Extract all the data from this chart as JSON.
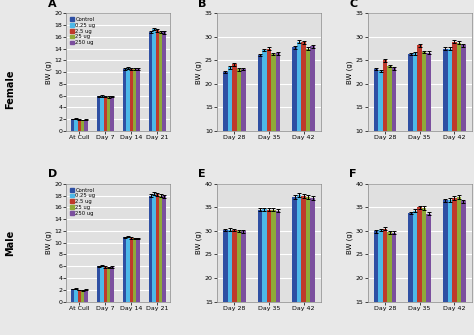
{
  "colors": [
    "#2e4fa3",
    "#4db8e8",
    "#c0392b",
    "#8faa38",
    "#7b4f9e"
  ],
  "legend_labels": [
    "Control",
    "0.25 ug",
    "2.5 ug",
    "25 ug",
    "250 ug"
  ],
  "panel_A": {
    "label": "A",
    "xticklabels": [
      "At Cull",
      "Day 7",
      "Day 14",
      "Day 21"
    ],
    "ylabel": "BW (g)",
    "ylim": [
      0,
      20
    ],
    "yticks": [
      0,
      2,
      4,
      6,
      8,
      10,
      12,
      14,
      16,
      18,
      20
    ],
    "data": [
      [
        2.05,
        5.9,
        10.6,
        16.8
      ],
      [
        2.1,
        5.95,
        10.65,
        17.35
      ],
      [
        1.95,
        5.82,
        10.52,
        17.1
      ],
      [
        1.88,
        5.78,
        10.5,
        16.82
      ],
      [
        1.92,
        5.82,
        10.48,
        16.78
      ]
    ],
    "errors": [
      [
        0.05,
        0.1,
        0.15,
        0.2
      ],
      [
        0.05,
        0.1,
        0.15,
        0.25
      ],
      [
        0.05,
        0.1,
        0.15,
        0.2
      ],
      [
        0.05,
        0.1,
        0.15,
        0.2
      ],
      [
        0.05,
        0.1,
        0.15,
        0.2
      ]
    ]
  },
  "panel_B": {
    "label": "B",
    "xticklabels": [
      "Day 28",
      "Day 35",
      "Day 42"
    ],
    "ylabel": "BW (g)",
    "ylim": [
      10,
      35
    ],
    "yticks": [
      10,
      15,
      20,
      25,
      30,
      35
    ],
    "data": [
      [
        22.5,
        26.2,
        27.8
      ],
      [
        23.5,
        27.2,
        29.0
      ],
      [
        24.2,
        27.5,
        28.9
      ],
      [
        23.1,
        26.4,
        27.5
      ],
      [
        23.2,
        26.5,
        28.0
      ]
    ],
    "errors": [
      [
        0.25,
        0.25,
        0.3
      ],
      [
        0.25,
        0.3,
        0.3
      ],
      [
        0.35,
        0.3,
        0.3
      ],
      [
        0.25,
        0.25,
        0.3
      ],
      [
        0.25,
        0.25,
        0.3
      ]
    ]
  },
  "panel_C": {
    "label": "C",
    "xticklabels": [
      "Day 28",
      "Day 35",
      "Day 42"
    ],
    "ylabel": "BW (g)",
    "ylim": [
      10,
      35
    ],
    "yticks": [
      10,
      15,
      20,
      25,
      30,
      35
    ],
    "data": [
      [
        23.2,
        26.3,
        27.5
      ],
      [
        22.8,
        26.5,
        27.5
      ],
      [
        25.0,
        28.2,
        29.0
      ],
      [
        23.8,
        26.8,
        28.8
      ],
      [
        23.3,
        26.6,
        28.2
      ]
    ],
    "errors": [
      [
        0.25,
        0.25,
        0.3
      ],
      [
        0.25,
        0.3,
        0.3
      ],
      [
        0.4,
        0.35,
        0.3
      ],
      [
        0.3,
        0.3,
        0.35
      ],
      [
        0.25,
        0.3,
        0.3
      ]
    ]
  },
  "panel_D": {
    "label": "D",
    "xticklabels": [
      "At Cull",
      "Day 7",
      "Day 14",
      "Day 21"
    ],
    "ylabel": "BW (g)",
    "ylim": [
      0,
      20
    ],
    "yticks": [
      0,
      2,
      4,
      6,
      8,
      10,
      12,
      14,
      16,
      18,
      20
    ],
    "data": [
      [
        2.1,
        6.0,
        10.9,
        18.0
      ],
      [
        2.18,
        6.08,
        11.05,
        18.35
      ],
      [
        1.95,
        5.88,
        10.78,
        18.2
      ],
      [
        1.88,
        5.82,
        10.72,
        18.0
      ],
      [
        2.0,
        5.88,
        10.72,
        17.88
      ]
    ],
    "errors": [
      [
        0.05,
        0.1,
        0.15,
        0.2
      ],
      [
        0.05,
        0.1,
        0.15,
        0.2
      ],
      [
        0.05,
        0.1,
        0.15,
        0.2
      ],
      [
        0.05,
        0.1,
        0.15,
        0.2
      ],
      [
        0.05,
        0.1,
        0.15,
        0.2
      ]
    ]
  },
  "panel_E": {
    "label": "E",
    "xticklabels": [
      "Day 28",
      "Day 35",
      "Day 42"
    ],
    "ylabel": "BW (g)",
    "ylim": [
      15,
      40
    ],
    "yticks": [
      15,
      20,
      25,
      30,
      35,
      40
    ],
    "data": [
      [
        30.2,
        34.5,
        37.2
      ],
      [
        30.3,
        34.6,
        37.6
      ],
      [
        30.2,
        34.5,
        37.4
      ],
      [
        30.0,
        34.5,
        37.2
      ],
      [
        29.9,
        34.3,
        37.0
      ]
    ],
    "errors": [
      [
        0.3,
        0.3,
        0.4
      ],
      [
        0.3,
        0.3,
        0.4
      ],
      [
        0.3,
        0.3,
        0.4
      ],
      [
        0.3,
        0.3,
        0.4
      ],
      [
        0.3,
        0.3,
        0.4
      ]
    ]
  },
  "panel_F": {
    "label": "F",
    "xticklabels": [
      "Day 28",
      "Day 35",
      "Day 42"
    ],
    "ylabel": "BW (g)",
    "ylim": [
      15,
      40
    ],
    "yticks": [
      15,
      20,
      25,
      30,
      35,
      40
    ],
    "data": [
      [
        29.9,
        33.8,
        36.5
      ],
      [
        30.2,
        34.3,
        36.6
      ],
      [
        30.5,
        35.0,
        37.0
      ],
      [
        29.7,
        34.8,
        37.2
      ],
      [
        29.6,
        33.7,
        36.3
      ]
    ],
    "errors": [
      [
        0.3,
        0.3,
        0.35
      ],
      [
        0.3,
        0.35,
        0.35
      ],
      [
        0.4,
        0.4,
        0.4
      ],
      [
        0.3,
        0.4,
        0.5
      ],
      [
        0.3,
        0.3,
        0.35
      ]
    ]
  },
  "female_label": "Female",
  "male_label": "Male",
  "bg_color": "#e8e8e8",
  "plot_bg": "#e0e0e0",
  "grid_color": "#ffffff"
}
